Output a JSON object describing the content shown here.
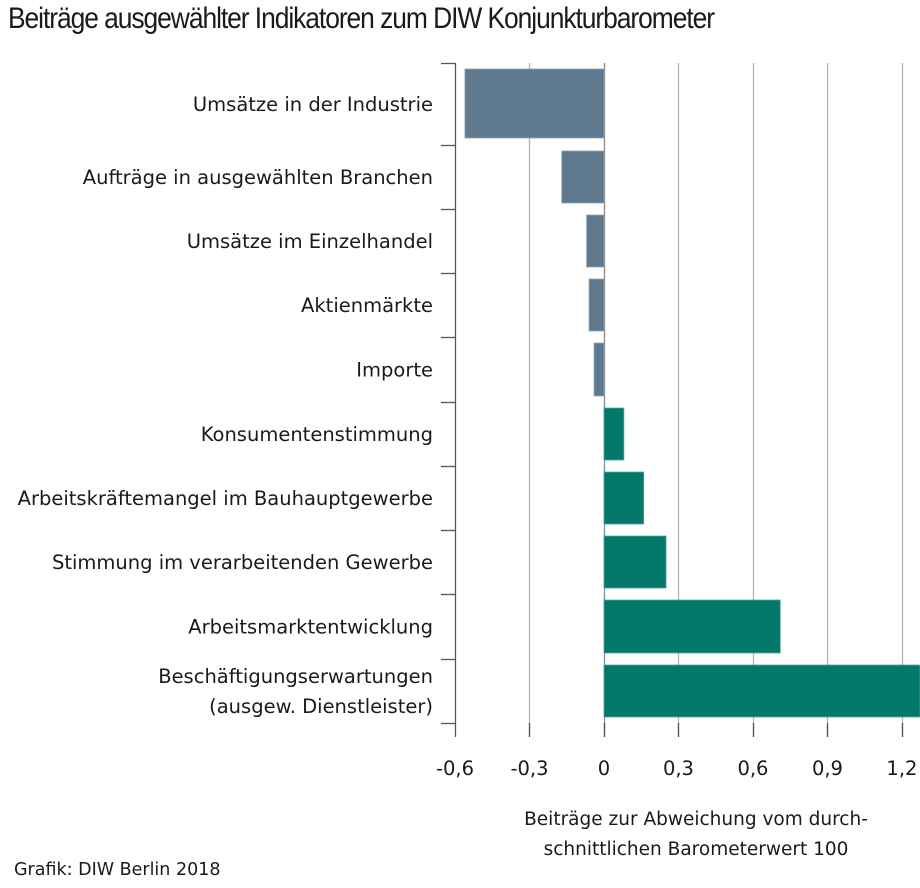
{
  "chart_data": {
    "type": "bar",
    "orientation": "horizontal",
    "title": "Beiträge ausgewählter Indikatoren zum DIW Konjunkturbarometer",
    "categories": [
      [
        "Umsätze in der Industrie"
      ],
      [
        "Aufträge in ausgewählten Branchen"
      ],
      [
        "Umsätze im Einzelhandel"
      ],
      [
        "Aktienmärkte"
      ],
      [
        "Importe"
      ],
      [
        "Konsumentenstimmung"
      ],
      [
        "Arbeitskräftemangel im Bauhauptgewerbe"
      ],
      [
        "Stimmung im verarbeitenden Gewerbe"
      ],
      [
        "Arbeitsmarktentwicklung"
      ],
      [
        "Beschäftigungserwartungen",
        "(ausgew. Dienstleister)"
      ]
    ],
    "values": [
      -0.56,
      -0.17,
      -0.07,
      -0.06,
      -0.04,
      0.08,
      0.16,
      0.25,
      0.71,
      1.28
    ],
    "xlim": [
      -0.6,
      1.26
    ],
    "xticks": [
      -0.6,
      -0.3,
      0,
      0.3,
      0.6,
      0.9,
      1.2
    ],
    "xtick_labels": [
      "-0,6",
      "-0,3",
      "0",
      "0,3",
      "0,6",
      "0,9",
      "1,2"
    ],
    "xlabel": [
      "Beiträge zur Abweichung vom durch-",
      "schnittlichen Barometerwert 100"
    ],
    "ylabel": "",
    "grid": "vertical",
    "colors": {
      "negative": "#5f7a8f",
      "positive": "#03786b",
      "grid": "#b3b3b3",
      "axis": "#555555"
    }
  },
  "source": "Grafik: DIW Berlin 2018"
}
